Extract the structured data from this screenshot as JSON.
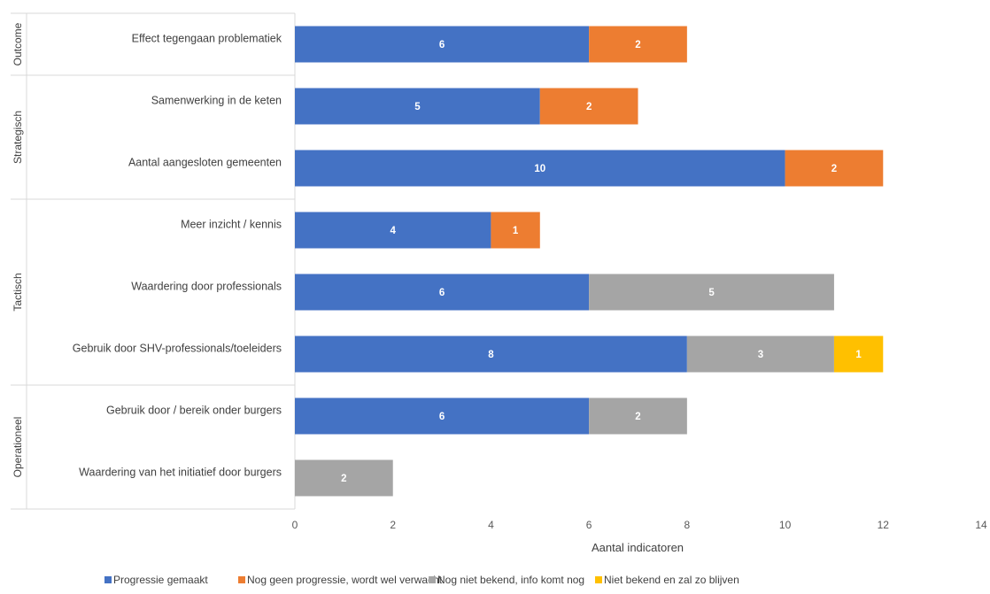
{
  "chart_data": {
    "type": "bar",
    "orientation": "horizontal",
    "stacked": true,
    "title": "",
    "xlabel": "Aantal indicatoren",
    "ylabel": "",
    "xlim": [
      0,
      14
    ],
    "x_ticks": [
      0,
      2,
      4,
      6,
      8,
      10,
      12,
      14
    ],
    "grid": false,
    "legend_position": "bottom",
    "groups": [
      {
        "name": "Outcome",
        "categories": [
          "Effect tegengaan problematiek"
        ]
      },
      {
        "name": "Strategisch",
        "categories": [
          "Samenwerking in de keten",
          "Aantal aangesloten gemeenten"
        ]
      },
      {
        "name": "Tactisch",
        "categories": [
          "Meer inzicht / kennis",
          "Waardering door professionals",
          "Gebruik door SHV-professionals/toeleiders"
        ]
      },
      {
        "name": "Operationeel",
        "categories": [
          "Gebruik door / bereik onder burgers",
          "Waardering van het initiatief door burgers"
        ]
      }
    ],
    "categories": [
      "Effect tegengaan problematiek",
      "Samenwerking in de keten",
      "Aantal aangesloten gemeenten",
      "Meer inzicht / kennis",
      "Waardering door professionals",
      "Gebruik door SHV-professionals/toeleiders",
      "Gebruik door / bereik onder burgers",
      "Waardering van het initiatief door burgers"
    ],
    "series": [
      {
        "name": "Progressie gemaakt",
        "color": "#4472C4",
        "values": [
          6,
          5,
          10,
          4,
          6,
          8,
          6,
          0
        ]
      },
      {
        "name": "Nog geen progressie, wordt wel verwacht",
        "color": "#ED7D31",
        "values": [
          2,
          2,
          2,
          1,
          0,
          0,
          0,
          0
        ]
      },
      {
        "name": "Nog niet bekend, info komt nog",
        "color": "#A5A5A5",
        "values": [
          0,
          0,
          0,
          0,
          5,
          3,
          2,
          2
        ]
      },
      {
        "name": "Niet bekend en zal zo blijven",
        "color": "#FFC000",
        "values": [
          0,
          0,
          0,
          0,
          0,
          1,
          0,
          0
        ]
      }
    ]
  }
}
